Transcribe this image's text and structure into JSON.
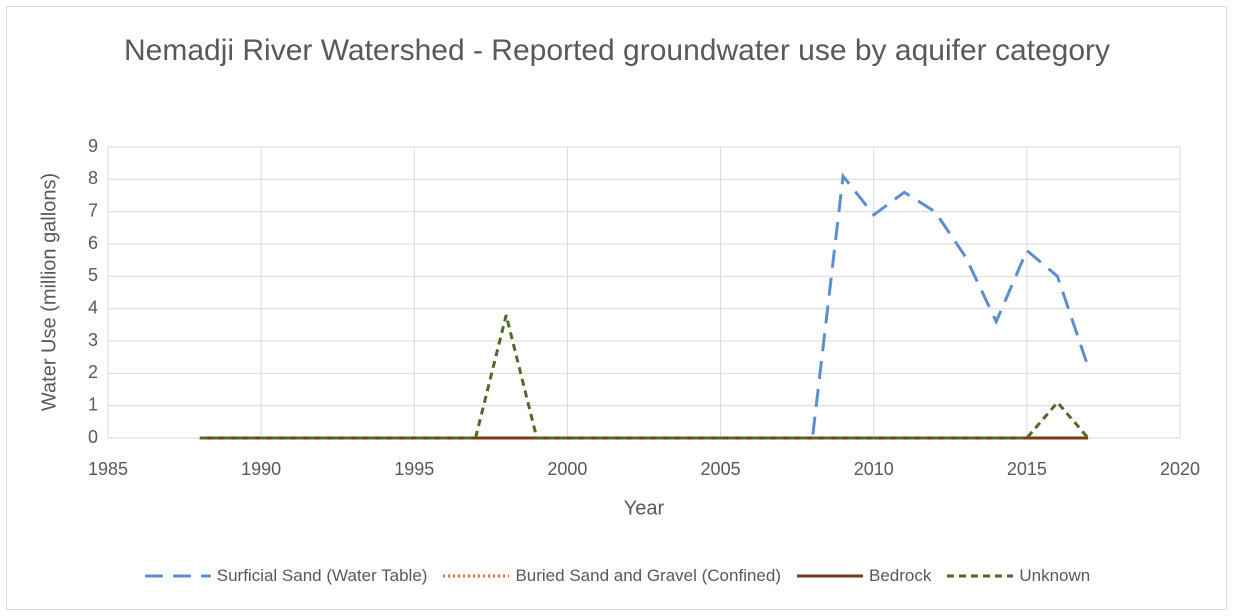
{
  "chart_data": {
    "type": "line",
    "title": "Nemadji River Watershed - Reported groundwater use by aquifer category",
    "xlabel": "Year",
    "ylabel": "Water Use (million gallons)",
    "x": [
      1988,
      1989,
      1990,
      1991,
      1992,
      1993,
      1994,
      1995,
      1996,
      1997,
      1998,
      1999,
      2000,
      2001,
      2002,
      2003,
      2004,
      2005,
      2006,
      2007,
      2008,
      2009,
      2010,
      2011,
      2012,
      2013,
      2014,
      2015,
      2016,
      2017
    ],
    "series": [
      {
        "name": "Surficial Sand (Water Table)",
        "color": "#5b8fd0",
        "dash": "18 10",
        "values": [
          0,
          0,
          0,
          0,
          0,
          0,
          0,
          0,
          0,
          0,
          0,
          0,
          0,
          0,
          0,
          0,
          0,
          0,
          0,
          0,
          0,
          8.1,
          6.9,
          7.6,
          7.0,
          5.6,
          3.6,
          5.8,
          5.0,
          2.2
        ]
      },
      {
        "name": "Buried Sand and Gravel (Confined)",
        "color": "#e0643a",
        "dash": "2 3",
        "values": [
          0,
          0,
          0,
          0,
          0,
          0,
          0,
          0,
          0,
          0,
          0,
          0,
          0,
          0,
          0,
          0,
          0,
          0,
          0,
          0,
          0,
          0,
          0,
          0,
          0,
          0,
          0,
          0,
          0,
          0
        ]
      },
      {
        "name": "Bedrock",
        "color": "#7b3c10",
        "dash": "none",
        "values": [
          0,
          0,
          0,
          0,
          0,
          0,
          0,
          0,
          0,
          0,
          0,
          0,
          0,
          0,
          0,
          0,
          0,
          0,
          0,
          0,
          0,
          0,
          0,
          0,
          0,
          0,
          0,
          0,
          0,
          0
        ]
      },
      {
        "name": "Unknown",
        "color": "#4f6b2a",
        "dash": "7 5",
        "values": [
          0,
          0,
          0,
          0,
          0,
          0,
          0,
          0,
          0,
          0,
          3.8,
          0,
          0,
          0,
          0,
          0,
          0,
          0,
          0,
          0,
          0,
          0,
          0,
          0,
          0,
          0,
          0,
          0,
          1.1,
          0
        ]
      }
    ],
    "xlim": [
      1985,
      2020
    ],
    "xticks": [
      1985,
      1990,
      1995,
      2000,
      2005,
      2010,
      2015,
      2020
    ],
    "ylim": [
      0,
      9
    ],
    "yticks": [
      0,
      1,
      2,
      3,
      4,
      5,
      6,
      7,
      8,
      9
    ],
    "grid": true,
    "legend": "bottom"
  }
}
